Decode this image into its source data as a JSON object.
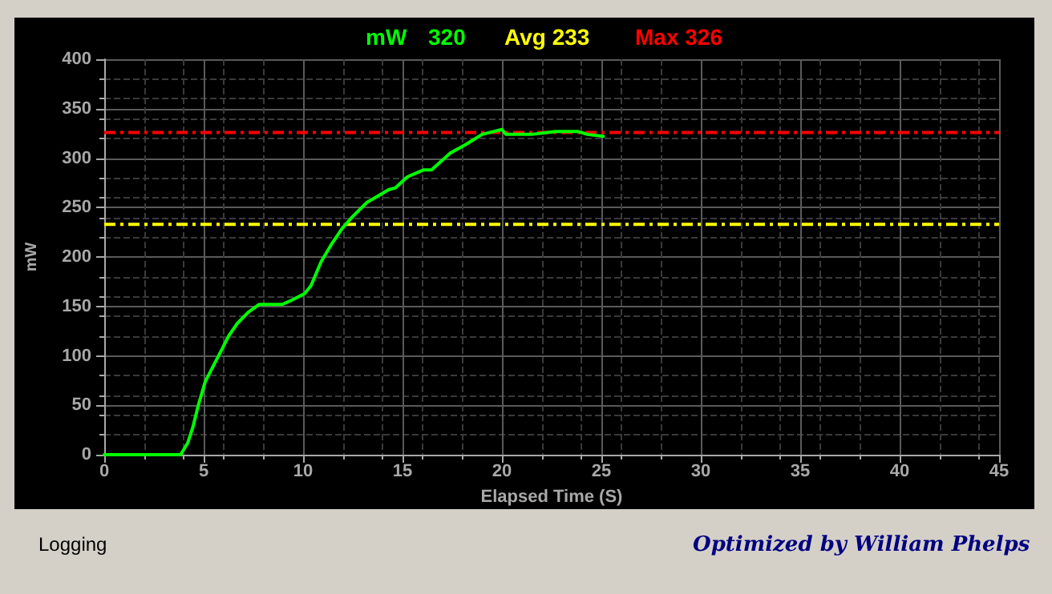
{
  "chart_data": {
    "type": "line",
    "xlabel": "Elapsed Time (S)",
    "ylabel": "mW",
    "x": [
      0,
      3.84,
      4.2,
      4.46,
      4.73,
      5.08,
      5.49,
      5.9,
      6.25,
      6.7,
      7.24,
      7.78,
      8.95,
      9.4,
      10.08,
      10.4,
      10.9,
      11.4,
      11.97,
      12.5,
      13.2,
      13.7,
      14.3,
      14.65,
      15.24,
      16.05,
      16.46,
      17.4,
      18.2,
      19.0,
      20.0,
      20.2,
      21.5,
      22.7,
      23.8,
      24.3,
      25.1
    ],
    "series": [
      {
        "name": "mW",
        "color": "#00ff00",
        "values": [
          0,
          0,
          12,
          28,
          50,
          74,
          90,
          106,
          120,
          133,
          144,
          152,
          152,
          156,
          163,
          171,
          195,
          212,
          229,
          241,
          255,
          261,
          268,
          270,
          281,
          288,
          288,
          305,
          314,
          324,
          329,
          324,
          324,
          327,
          327,
          324,
          322
        ]
      }
    ],
    "ref_lines": [
      {
        "axis": "y",
        "value": 233,
        "label": "Avg 233",
        "color": "#ffff00",
        "line_style": "dashed"
      },
      {
        "axis": "y",
        "value": 326,
        "label": "Max 326",
        "color": "#ff0000",
        "line_style": "dashed"
      }
    ],
    "annotations": [
      "320",
      "Logging",
      "Optimized by William Phelps"
    ],
    "xlim": [
      0,
      45
    ],
    "xticks": [
      0,
      5,
      10,
      15,
      20,
      25,
      30,
      35,
      40,
      45
    ],
    "ylim": [
      0,
      400
    ],
    "yticks": [
      0,
      50,
      100,
      150,
      200,
      250,
      300,
      350,
      400
    ],
    "grid": true,
    "legend": "top",
    "marker": "none",
    "line_style": "solid"
  }
}
